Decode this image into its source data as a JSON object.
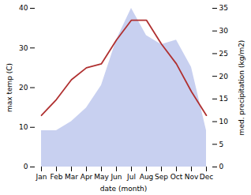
{
  "chart_data": {
    "type": "line",
    "xlabel": "date (month)",
    "ylabel": "max temp (C)",
    "y2label": "med. precipitation (kg/m2)",
    "categories": [
      "Jan",
      "Feb",
      "Mar",
      "Apr",
      "May",
      "Jun",
      "Jul",
      "Aug",
      "Sep",
      "Oct",
      "Nov",
      "Dec"
    ],
    "ylim": [
      0,
      40
    ],
    "yticks": [
      0,
      10,
      20,
      30,
      40
    ],
    "y2lim": [
      0,
      35
    ],
    "y2ticks": [
      0,
      5,
      10,
      15,
      20,
      25,
      30,
      35
    ],
    "grid": false,
    "series": [
      {
        "type": "area",
        "axis": "y2",
        "color": "#c8d0f0",
        "values": [
          8,
          8,
          10,
          13,
          18,
          28,
          35,
          29,
          27,
          28,
          22,
          8
        ]
      },
      {
        "type": "line",
        "color": "#b03030",
        "values": [
          13,
          17,
          22,
          25,
          26,
          32,
          37,
          37,
          31,
          26,
          19,
          13
        ]
      }
    ]
  }
}
